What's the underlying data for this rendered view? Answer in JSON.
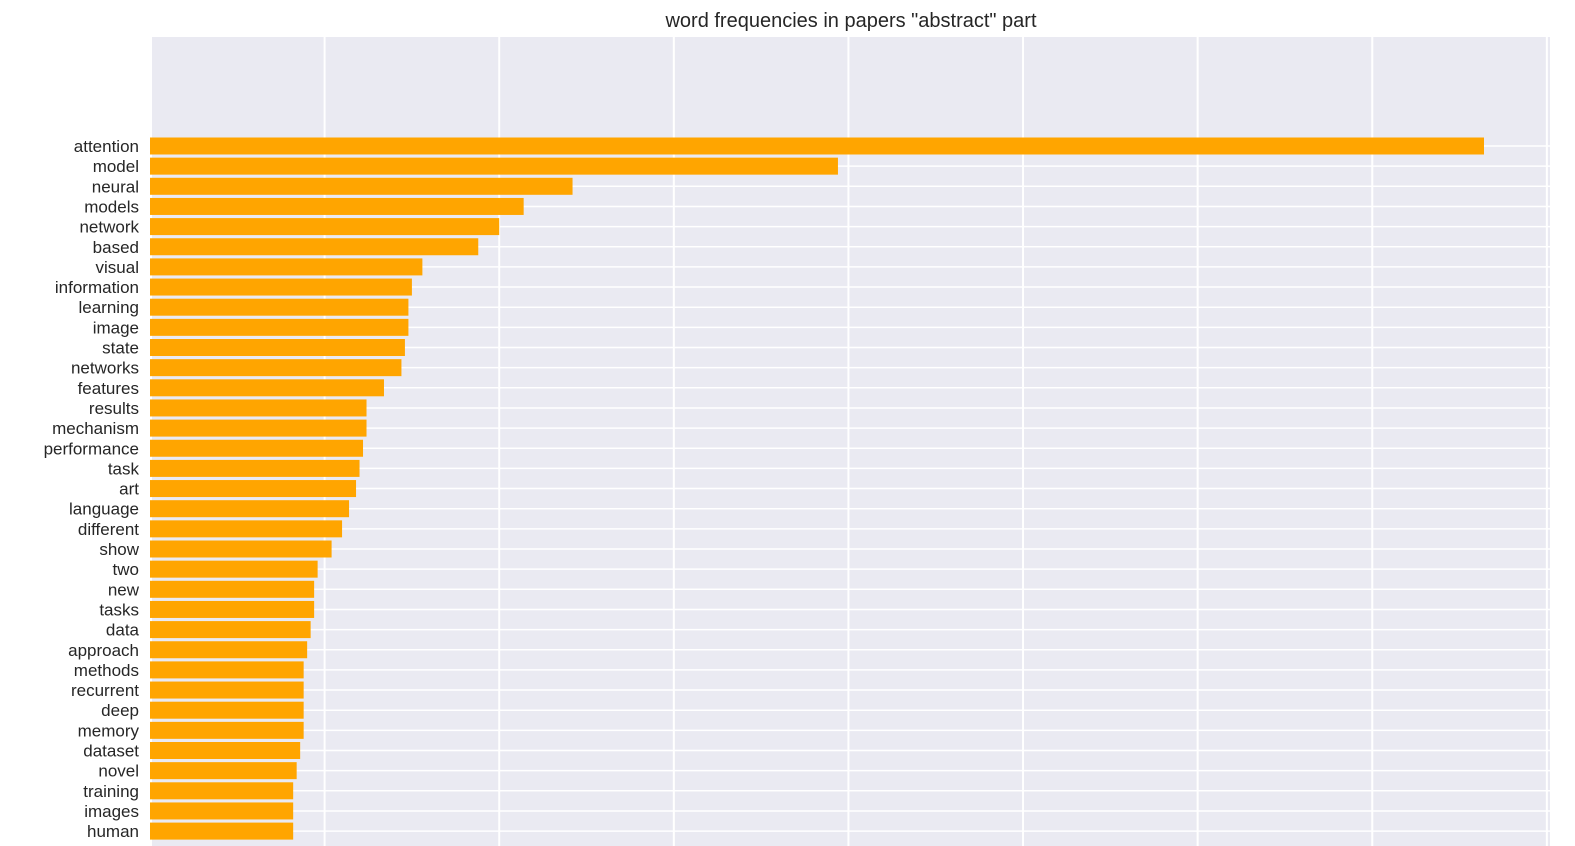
{
  "chart_data": {
    "type": "bar",
    "orientation": "horizontal",
    "title": "word frequencies in papers \"abstract\" part",
    "xlabel": "",
    "ylabel": "",
    "xlim": [
      0,
      400
    ],
    "grid": true,
    "categories": [
      "attention",
      "model",
      "neural",
      "models",
      "network",
      "based",
      "visual",
      "information",
      "learning",
      "image",
      "state",
      "networks",
      "features",
      "results",
      "mechanism",
      "performance",
      "task",
      "art",
      "language",
      "different",
      "show",
      "two",
      "new",
      "tasks",
      "data",
      "approach",
      "methods",
      "recurrent",
      "deep",
      "memory",
      "dataset",
      "novel",
      "training",
      "images",
      "human"
    ],
    "values": [
      382,
      197,
      121,
      107,
      100,
      94,
      78,
      75,
      74,
      74,
      73,
      72,
      67,
      62,
      62,
      61,
      60,
      59,
      57,
      55,
      52,
      48,
      47,
      47,
      46,
      45,
      44,
      44,
      44,
      44,
      43,
      42,
      41,
      41,
      41
    ],
    "colors": {
      "bar": "#ffa500",
      "plot_background": "#eaeaf2",
      "grid": "#ffffff"
    }
  }
}
